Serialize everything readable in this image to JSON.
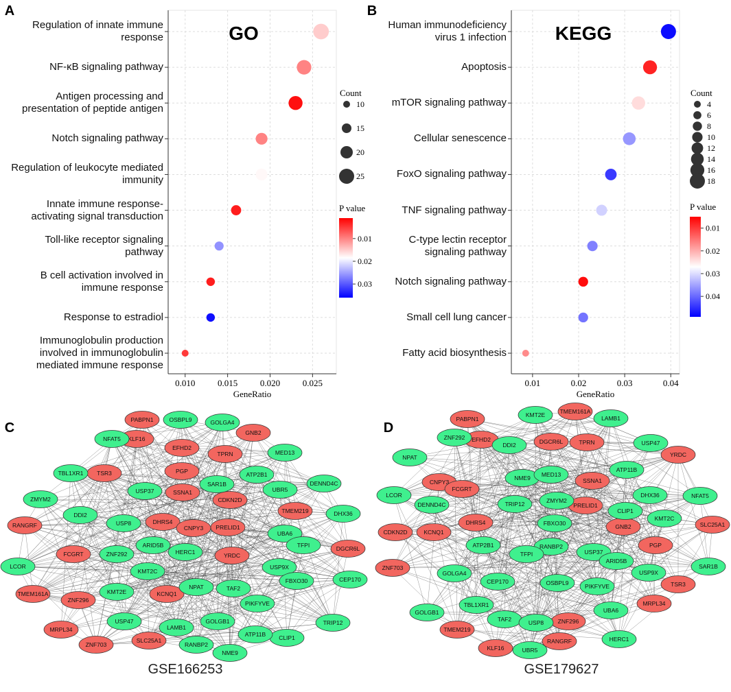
{
  "chart_data": [
    {
      "type": "dot",
      "label": "A",
      "annotation": "GO",
      "categories": [
        "Regulation of innate immune\nresponse",
        "NF-κB signaling pathway",
        "Antigen processing and\npresentation of peptide antigen",
        "Notch signaling pathway",
        "Regulation of leukocyte mediated\nimmunity",
        "Innate immune response-\nactivating signal transduction",
        "Toll-like receptor signaling\npathway",
        "B cell activation involved in\nimmune response",
        "Response to estradiol",
        "Immunoglobulin production\ninvolved in immunoglobulin\nmediated immune response"
      ],
      "values": [
        0.026,
        0.024,
        0.023,
        0.019,
        0.019,
        0.016,
        0.014,
        0.013,
        0.013,
        0.01
      ],
      "sizes": [
        26,
        24,
        23,
        19,
        19,
        16,
        14,
        13,
        13,
        10
      ],
      "pvalues": [
        0.015,
        0.01,
        0.002,
        0.01,
        0.018,
        0.003,
        0.026,
        0.003,
        0.035,
        0.005
      ],
      "xlabel": "GeneRatio",
      "xlim": [
        0.008,
        0.0278
      ],
      "xticks": [
        {
          "value": 0.01,
          "label": "0.010"
        },
        0.015,
        {
          "value": 0.02,
          "label": "0.020"
        },
        0.025
      ],
      "size_label": "Count",
      "size_ticks": [
        10,
        15,
        20,
        25
      ],
      "color_label": "P value",
      "colorlim": [
        0.001,
        0.036
      ],
      "colorticks": [
        0.01,
        0.02,
        0.03
      ],
      "colors": [
        "#ff0000",
        "#ffffff",
        "#0000ff"
      ],
      "grid": true
    },
    {
      "type": "dot",
      "label": "B",
      "annotation": "KEGG",
      "categories": [
        "Human immunodeficiency\nvirus 1 infection",
        "Apoptosis",
        "mTOR signaling pathway",
        "Cellular senescence",
        "FoxO signaling pathway",
        "TNF signaling pathway",
        "C-type lectin receptor\nsignaling pathway",
        "Notch signaling pathway",
        "Small cell lung cancer",
        "Fatty acid biosynthesis"
      ],
      "values": [
        0.0395,
        0.0355,
        0.033,
        0.031,
        0.027,
        0.025,
        0.023,
        0.021,
        0.021,
        0.0085
      ],
      "sizes": [
        18,
        16,
        15,
        14,
        12,
        11,
        10,
        9,
        9,
        4
      ],
      "pvalues": [
        0.048,
        0.008,
        0.024,
        0.036,
        0.044,
        0.031,
        0.038,
        0.006,
        0.039,
        0.017
      ],
      "xlabel": "GeneRatio",
      "xlim": [
        0.0054,
        0.0419
      ],
      "xticks": [
        0.01,
        0.02,
        0.03,
        0.04
      ],
      "size_label": "Count",
      "size_ticks": [
        4,
        6,
        8,
        10,
        12,
        14,
        16,
        18
      ],
      "color_label": "P value",
      "colorlim": [
        0.005,
        0.049
      ],
      "colorticks": [
        0.01,
        0.02,
        0.03,
        0.04
      ],
      "colors": [
        "#ff0000",
        "#ffffff",
        "#0000ff"
      ],
      "grid": true
    }
  ],
  "networks": [
    {
      "label": "C",
      "title": "GSE166253",
      "groups": [
        {
          "color": "#f2665f",
          "nodes": [
            "PABPN1",
            "GNB2",
            "KLF16",
            "EFHD2",
            "TPRN",
            "PGP",
            "TSR3",
            "SSNA1",
            "CDKN2D",
            "TMEM219",
            "RANGRF",
            "DHRS4",
            "CNPY3",
            "PRELID1",
            "YRDC",
            "DGCR6L",
            "FCGRT",
            "TMEM161A",
            "ZNF296",
            "KCNQ1",
            "MRPL34",
            "ZNF703",
            "SLC25A1"
          ]
        },
        {
          "color": "#3ff08e",
          "nodes": [
            "OSBPL9",
            "GOLGA4",
            "NFAT5",
            "MED13",
            "TBL1XR1",
            "ATP2B1",
            "SAR1B",
            "USP37",
            "UBR5",
            "DENND4C",
            "ZMYM2",
            "DDI2",
            "USP8",
            "DHX36",
            "UBA6",
            "ARID5B",
            "TFPI",
            "HERC1",
            "ZNF292",
            "LCOR",
            "KMT2C",
            "USP9X",
            "NPAT",
            "TAF2",
            "FBXO30",
            "CEP170",
            "KMT2E",
            "PIKFYVE",
            "USP47",
            "GOLGB1",
            "TRIP12",
            "LAMB1",
            "CLIP1",
            "ATP11B",
            "RANBP2",
            "NME9"
          ]
        }
      ]
    },
    {
      "label": "D",
      "title": "GSE179627",
      "groups": [
        {
          "color": "#f2665f",
          "nodes": [
            "PABPN1",
            "TMEM161A",
            "TPRN",
            "EFHD2",
            "DGCR6L",
            "YRDC",
            "CNPY3",
            "SSNA1",
            "FCGRT",
            "PRELID1",
            "DHRS4",
            "CDKN2D",
            "KCNQ1",
            "GNB2",
            "SLC25A1",
            "PGP",
            "ZNF703",
            "ZNF296",
            "TSR3",
            "MRPL34",
            "TMEM219",
            "KLF16",
            "RANGRF"
          ]
        },
        {
          "color": "#3ff08e",
          "nodes": [
            "KMT2E",
            "LAMB1",
            "ZNF292",
            "USP47",
            "DDI2",
            "NPAT",
            "ATP11B",
            "NME9",
            "MED13",
            "ZMYM2",
            "DHX36",
            "NFAT5",
            "TRIP12",
            "CLIP1",
            "LCOR",
            "DENND4C",
            "FBXO30",
            "KMT2C",
            "RANBP2",
            "ATP2B1",
            "USP37",
            "TFPI",
            "ARID5B",
            "GOLGA4",
            "CEP170",
            "OSBPL9",
            "PIKFYVE",
            "USP9X",
            "SAR1B",
            "UBA6",
            "GOLGB1",
            "TBL1XR1",
            "TAF2",
            "USP8",
            "HERC1",
            "UBR5"
          ]
        }
      ]
    }
  ]
}
